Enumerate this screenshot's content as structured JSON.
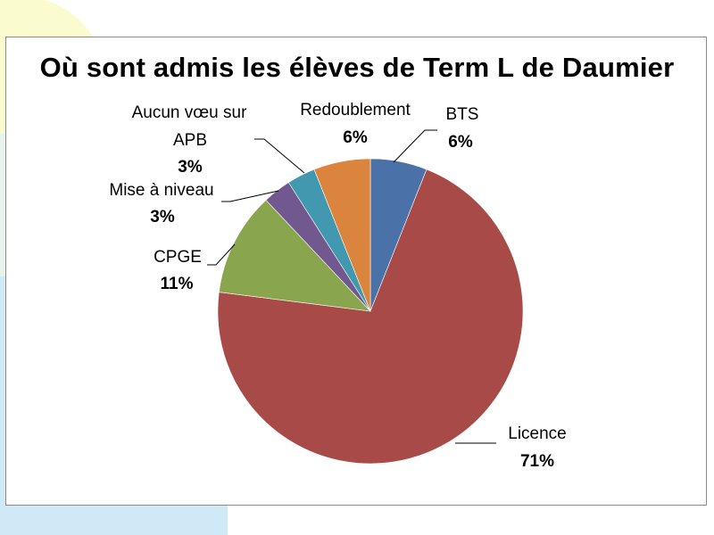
{
  "colors": {
    "background_shape": "#fbfbd0",
    "background_band": "#cfe9f7"
  },
  "chart_data": {
    "type": "pie",
    "title": "Où sont admis les élèves de Term L de Daumier",
    "slices": [
      {
        "label": "BTS",
        "value": 6,
        "value_label": "6%",
        "color": "#4a72a8"
      },
      {
        "label": "Licence",
        "value": 71,
        "value_label": "71%",
        "color": "#a84a48"
      },
      {
        "label": "CPGE",
        "value": 11,
        "value_label": "11%",
        "color": "#89a54e"
      },
      {
        "label": "Mise à niveau",
        "value": 3,
        "value_label": "3%",
        "color": "#71588f"
      },
      {
        "label": "Aucun vœu sur APB",
        "value": 3,
        "value_label": "3%",
        "color": "#4198af"
      },
      {
        "label": "Redoublement",
        "value": 6,
        "value_label": "6%",
        "color": "#db843d"
      }
    ],
    "legend": "none"
  }
}
